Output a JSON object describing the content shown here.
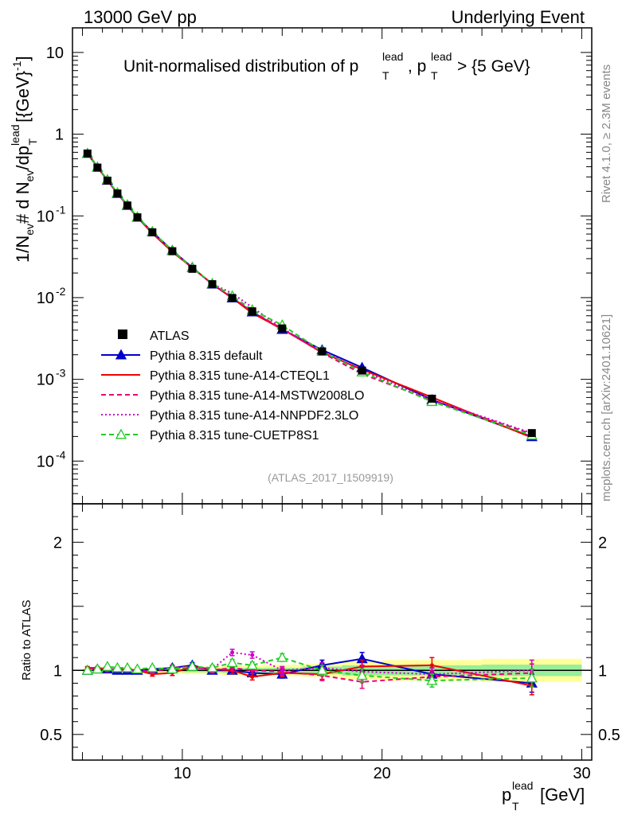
{
  "header": {
    "left": "13000 GeV pp",
    "right": "Underlying Event"
  },
  "side": {
    "rivet": "Rivet 4.1.0, ≥ 2.3M events",
    "mcplots": "mcplots.cern.ch [arXiv:2401.10621]"
  },
  "chart_data": {
    "type": "line",
    "title": "Unit-normalised distribution of pT lead, pT lead > {5 GeV}",
    "title_main": "Unit-normalised distribution of p",
    "title_sup": "lead",
    "title_sub": "T",
    "title_cond": "> {5 GeV}",
    "ylabel": "1/N_ev # d N_ev/dp_T^lead [{GeV}^-1]",
    "xlabel": "p_T^lead [GeV]",
    "ratio_ylabel": "Ratio to ATLAS",
    "watermark": "(ATLAS_2017_I1509919)",
    "xlim": [
      4.5,
      30.5
    ],
    "ylim": [
      3e-05,
      20
    ],
    "ratio_ylim": [
      0.3,
      2.3
    ],
    "x_ticks": [
      10,
      20,
      30
    ],
    "y_ticks": [
      "10^-4",
      "10^-3",
      "10^-2",
      "10^-1",
      "1",
      "10"
    ],
    "ratio_ticks": [
      0.5,
      1,
      2
    ],
    "x": [
      5.25,
      5.75,
      6.25,
      6.75,
      7.25,
      7.75,
      8.5,
      9.5,
      10.5,
      11.5,
      12.5,
      13.5,
      15.0,
      17.0,
      19.0,
      22.5,
      27.5
    ],
    "x_edges": [
      5,
      5.5,
      6,
      6.5,
      7,
      7.5,
      8,
      9,
      10,
      11,
      12,
      13,
      14,
      16,
      18,
      20,
      25,
      30
    ],
    "atlas": {
      "name": "ATLAS",
      "values": [
        0.58,
        0.39,
        0.27,
        0.188,
        0.134,
        0.096,
        0.063,
        0.037,
        0.0225,
        0.0146,
        0.0099,
        0.0068,
        0.0042,
        0.0022,
        0.00128,
        0.00058,
        0.00022
      ],
      "band_stat": [
        0.01,
        0.01,
        0.01,
        0.01,
        0.01,
        0.01,
        0.012,
        0.012,
        0.015,
        0.015,
        0.02,
        0.02,
        0.02,
        0.03,
        0.04,
        0.04,
        0.045
      ],
      "band_total": [
        0.015,
        0.015,
        0.015,
        0.015,
        0.015,
        0.015,
        0.02,
        0.025,
        0.03,
        0.03,
        0.04,
        0.04,
        0.045,
        0.05,
        0.07,
        0.08,
        0.09
      ]
    },
    "series": [
      {
        "name": "Pythia 8.315 default",
        "color": "#0000cc",
        "style": "solid",
        "marker": "triangle-filled",
        "ratio": [
          1.0,
          1.01,
          1.01,
          1.0,
          1.0,
          1.0,
          1.01,
          1.02,
          1.04,
          1.0,
          1.0,
          0.98,
          0.97,
          1.04,
          1.09,
          0.97,
          0.9
        ],
        "err": [
          0.01,
          0.01,
          0.01,
          0.01,
          0.01,
          0.015,
          0.015,
          0.02,
          0.02,
          0.02,
          0.025,
          0.025,
          0.03,
          0.04,
          0.05,
          0.05,
          0.07
        ]
      },
      {
        "name": "Pythia 8.315 tune-A14-CTEQL1",
        "color": "#ee0000",
        "style": "solid",
        "marker": "none",
        "ratio": [
          1.02,
          1.02,
          1.01,
          1.01,
          1.01,
          1.0,
          0.97,
          0.98,
          1.03,
          1.01,
          1.0,
          0.95,
          0.98,
          0.97,
          1.03,
          1.04,
          0.88
        ],
        "err": [
          0.01,
          0.01,
          0.01,
          0.01,
          0.01,
          0.015,
          0.015,
          0.02,
          0.02,
          0.02,
          0.025,
          0.025,
          0.03,
          0.04,
          0.05,
          0.06,
          0.07
        ]
      },
      {
        "name": "Pythia 8.315 tune-A14-MSTW2008LO",
        "color": "#ee0077",
        "style": "dashed",
        "marker": "none",
        "ratio": [
          1.01,
          1.01,
          1.0,
          1.0,
          1.0,
          1.0,
          0.99,
          1.02,
          1.03,
          1.0,
          1.02,
          1.0,
          0.99,
          0.96,
          0.91,
          0.95,
          0.98
        ],
        "err": [
          0.01,
          0.01,
          0.01,
          0.01,
          0.01,
          0.015,
          0.015,
          0.02,
          0.02,
          0.02,
          0.025,
          0.025,
          0.03,
          0.04,
          0.05,
          0.05,
          0.07
        ]
      },
      {
        "name": "Pythia 8.315 tune-A14-NNPDF2.3LO",
        "color": "#cc00cc",
        "style": "dotted",
        "marker": "none",
        "ratio": [
          1.01,
          1.01,
          1.01,
          1.01,
          1.0,
          1.0,
          1.0,
          1.02,
          1.02,
          1.01,
          1.14,
          1.12,
          1.0,
          1.02,
          0.99,
          0.97,
          1.0
        ],
        "err": [
          0.01,
          0.01,
          0.01,
          0.01,
          0.01,
          0.015,
          0.015,
          0.02,
          0.02,
          0.02,
          0.025,
          0.025,
          0.03,
          0.04,
          0.05,
          0.05,
          0.08
        ]
      },
      {
        "name": "Pythia 8.315 tune-CUETP8S1",
        "color": "#22cc22",
        "style": "dashed",
        "marker": "triangle-open",
        "ratio": [
          1.0,
          1.01,
          1.03,
          1.02,
          1.02,
          1.01,
          1.02,
          1.01,
          1.03,
          1.02,
          1.06,
          1.04,
          1.1,
          1.0,
          0.96,
          0.92,
          0.94
        ],
        "err": [
          0.01,
          0.01,
          0.01,
          0.01,
          0.01,
          0.015,
          0.015,
          0.02,
          0.02,
          0.02,
          0.025,
          0.025,
          0.03,
          0.04,
          0.05,
          0.05,
          0.07
        ]
      }
    ]
  }
}
